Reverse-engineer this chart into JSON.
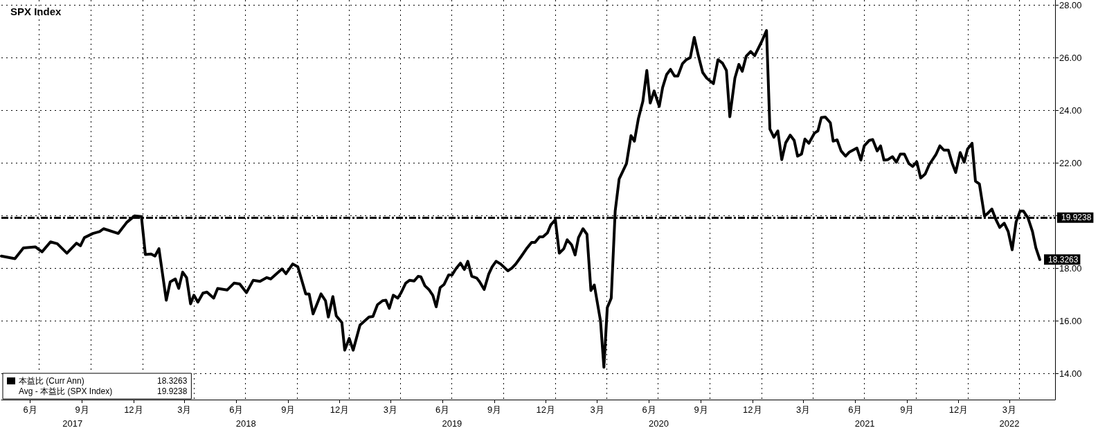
{
  "chart_data": {
    "type": "line",
    "title": "SPX Index",
    "xlim": [
      "2017-04-25",
      "2022-06-04"
    ],
    "xticks": [
      {
        "value": "2017-06-15",
        "label": "6月"
      },
      {
        "value": "2017-09-15",
        "label": "9月"
      },
      {
        "value": "2017-12-15",
        "label": "12月"
      },
      {
        "value": "2018-03-15",
        "label": "3月"
      },
      {
        "value": "2018-06-15",
        "label": "6月"
      },
      {
        "value": "2018-09-15",
        "label": "9月"
      },
      {
        "value": "2018-12-15",
        "label": "12月"
      },
      {
        "value": "2019-03-15",
        "label": "3月"
      },
      {
        "value": "2019-06-15",
        "label": "6月"
      },
      {
        "value": "2019-09-15",
        "label": "9月"
      },
      {
        "value": "2019-12-15",
        "label": "12月"
      },
      {
        "value": "2020-03-15",
        "label": "3月"
      },
      {
        "value": "2020-06-15",
        "label": "6月"
      },
      {
        "value": "2020-09-15",
        "label": "9月"
      },
      {
        "value": "2020-12-15",
        "label": "12月"
      },
      {
        "value": "2021-03-15",
        "label": "3月"
      },
      {
        "value": "2021-06-15",
        "label": "6月"
      },
      {
        "value": "2021-09-15",
        "label": "9月"
      },
      {
        "value": "2021-12-15",
        "label": "12月"
      },
      {
        "value": "2022-03-15",
        "label": "3月"
      },
      {
        "value": "2017-07-01",
        "label": null
      },
      {
        "value": "2017-10-01",
        "label": null
      },
      {
        "value": "2018-01-01",
        "label": null
      },
      {
        "value": "2018-04-01",
        "label": null
      },
      {
        "value": "2018-07-01",
        "label": null
      },
      {
        "value": "2018-10-01",
        "label": null
      },
      {
        "value": "2019-01-01",
        "label": null
      },
      {
        "value": "2019-04-01",
        "label": null
      },
      {
        "value": "2019-07-01",
        "label": null
      },
      {
        "value": "2019-10-01",
        "label": null
      },
      {
        "value": "2020-01-01",
        "label": null
      },
      {
        "value": "2020-04-01",
        "label": null
      },
      {
        "value": "2020-07-01",
        "label": null
      },
      {
        "value": "2020-10-01",
        "label": null
      },
      {
        "value": "2021-01-01",
        "label": null
      },
      {
        "value": "2021-04-01",
        "label": null
      },
      {
        "value": "2021-07-01",
        "label": null
      },
      {
        "value": "2021-10-01",
        "label": null
      },
      {
        "value": "2022-01-01",
        "label": null
      },
      {
        "value": "2022-04-01",
        "label": null
      }
    ],
    "x2lim": [
      "2017-04-25",
      "2022-06-04"
    ],
    "x2ticks": [
      {
        "value": "2017-08-29",
        "label": "2017"
      },
      {
        "value": "2018-07-02",
        "label": "2018"
      },
      {
        "value": "2019-07-02",
        "label": "2019"
      },
      {
        "value": "2020-07-02",
        "label": "2020"
      },
      {
        "value": "2021-07-02",
        "label": "2021"
      },
      {
        "value": "2022-03-15",
        "label": "2022"
      }
    ],
    "ylim": [
      13,
      28.2
    ],
    "yticks": [
      {
        "value": 14,
        "label": "14.00"
      },
      {
        "value": 16,
        "label": "16.00"
      },
      {
        "value": 18,
        "label": "18.00"
      },
      {
        "value": 20,
        "label": null
      },
      {
        "value": 22,
        "label": "22.00"
      },
      {
        "value": 24,
        "label": "24.00"
      },
      {
        "value": 26,
        "label": "26.00"
      },
      {
        "value": 28,
        "label": "28.00"
      }
    ],
    "grid": true,
    "legend": "bottom left",
    "marker": "none",
    "line_style": "solid",
    "ref_lines": [
      {
        "axis": "y",
        "value": 19.9238,
        "label": "19.9238",
        "color": "#000000",
        "line_style": "dashed"
      }
    ],
    "annotations": [
      "Avg - 本益比 (SPX Index)"
    ],
    "x": [
      "2017-04-25",
      "2017-05-19",
      "2017-06-03",
      "2017-06-24",
      "2017-07-06",
      "2017-07-21",
      "2017-08-02",
      "2017-08-19",
      "2017-09-05",
      "2017-09-12",
      "2017-09-19",
      "2017-10-04",
      "2017-10-16",
      "2017-10-23",
      "2017-11-18",
      "2017-12-03",
      "2017-12-17",
      "2017-12-29",
      "2018-01-05",
      "2018-01-15",
      "2018-01-22",
      "2018-01-29",
      "2018-02-11",
      "2018-02-18",
      "2018-02-27",
      "2018-03-05",
      "2018-03-12",
      "2018-03-19",
      "2018-03-26",
      "2018-04-01",
      "2018-04-08",
      "2018-04-17",
      "2018-04-24",
      "2018-05-06",
      "2018-05-13",
      "2018-05-30",
      "2018-06-11",
      "2018-06-21",
      "2018-07-03",
      "2018-07-15",
      "2018-07-27",
      "2018-08-08",
      "2018-08-15",
      "2018-09-04",
      "2018-09-11",
      "2018-09-23",
      "2018-10-02",
      "2018-10-16",
      "2018-10-22",
      "2018-10-29",
      "2018-11-12",
      "2018-11-20",
      "2018-11-25",
      "2018-12-03",
      "2018-12-09",
      "2018-12-19",
      "2018-12-24",
      "2019-01-01",
      "2019-01-08",
      "2019-01-20",
      "2019-02-05",
      "2019-02-12",
      "2019-02-20",
      "2019-03-01",
      "2019-03-07",
      "2019-03-13",
      "2019-03-20",
      "2019-03-28",
      "2019-04-03",
      "2019-04-11",
      "2019-04-18",
      "2019-04-26",
      "2019-05-03",
      "2019-05-08",
      "2019-05-15",
      "2019-05-22",
      "2019-05-29",
      "2019-06-04",
      "2019-06-11",
      "2019-06-18",
      "2019-06-26",
      "2019-07-02",
      "2019-07-09",
      "2019-07-17",
      "2019-07-24",
      "2019-07-30",
      "2019-08-06",
      "2019-08-15",
      "2019-08-20",
      "2019-08-28",
      "2019-09-05",
      "2019-09-11",
      "2019-09-18",
      "2019-09-26",
      "2019-10-09",
      "2019-10-16",
      "2019-10-23",
      "2019-11-02",
      "2019-11-12",
      "2019-11-20",
      "2019-11-26",
      "2019-12-04",
      "2019-12-10",
      "2019-12-18",
      "2019-12-24",
      "2020-01-01",
      "2020-01-08",
      "2020-01-16",
      "2020-01-22",
      "2020-01-30",
      "2020-02-05",
      "2020-02-11",
      "2020-02-19",
      "2020-02-26",
      "2020-03-04",
      "2020-03-10",
      "2020-03-21",
      "2020-03-27",
      "2020-04-02",
      "2020-04-09",
      "2020-04-16",
      "2020-04-23",
      "2020-05-06",
      "2020-05-14",
      "2020-05-20",
      "2020-05-27",
      "2020-06-04",
      "2020-06-11",
      "2020-06-17",
      "2020-06-24",
      "2020-07-03",
      "2020-07-09",
      "2020-07-16",
      "2020-07-23",
      "2020-07-30",
      "2020-08-05",
      "2020-08-13",
      "2020-08-20",
      "2020-08-27",
      "2020-09-03",
      "2020-09-10",
      "2020-09-18",
      "2020-09-25",
      "2020-10-07",
      "2020-10-15",
      "2020-10-23",
      "2020-10-30",
      "2020-11-05",
      "2020-11-14",
      "2020-11-21",
      "2020-11-27",
      "2020-12-04",
      "2020-12-12",
      "2020-12-19",
      "2020-12-31",
      "2021-01-09",
      "2021-01-15",
      "2021-01-22",
      "2021-01-29",
      "2021-02-05",
      "2021-02-12",
      "2021-02-20",
      "2021-02-27",
      "2021-03-05",
      "2021-03-12",
      "2021-03-18",
      "2021-03-25",
      "2021-04-04",
      "2021-04-10",
      "2021-04-16",
      "2021-04-23",
      "2021-05-02",
      "2021-05-07",
      "2021-05-14",
      "2021-05-21",
      "2021-05-29",
      "2021-06-05",
      "2021-06-18",
      "2021-06-25",
      "2021-07-01",
      "2021-07-10",
      "2021-07-16",
      "2021-07-24",
      "2021-07-30",
      "2021-08-05",
      "2021-08-12",
      "2021-08-20",
      "2021-08-27",
      "2021-09-03",
      "2021-09-10",
      "2021-09-18",
      "2021-09-25",
      "2021-10-02",
      "2021-10-09",
      "2021-10-17",
      "2021-10-24",
      "2021-11-05",
      "2021-11-12",
      "2021-11-19",
      "2021-11-27",
      "2021-12-04",
      "2021-12-10",
      "2021-12-18",
      "2021-12-25",
      "2021-12-31",
      "2022-01-08",
      "2022-01-14",
      "2022-01-21",
      "2022-01-30",
      "2022-02-05",
      "2022-02-12",
      "2022-02-19",
      "2022-02-26",
      "2022-03-06",
      "2022-03-13",
      "2022-03-20",
      "2022-03-27",
      "2022-04-03",
      "2022-04-09",
      "2022-04-17",
      "2022-04-25",
      "2022-05-01",
      "2022-05-08"
    ],
    "series": [
      {
        "name": "本益比 (Curr Ann)",
        "color": "#000000",
        "values": [
          18.46,
          18.36,
          18.77,
          18.81,
          18.62,
          19.0,
          18.93,
          18.57,
          18.95,
          18.85,
          19.16,
          19.32,
          19.39,
          19.5,
          19.32,
          19.74,
          19.99,
          19.96,
          18.52,
          18.54,
          18.46,
          18.74,
          16.78,
          17.48,
          17.59,
          17.23,
          17.85,
          17.64,
          16.64,
          16.97,
          16.71,
          17.05,
          17.09,
          16.86,
          17.23,
          17.17,
          17.43,
          17.4,
          17.07,
          17.54,
          17.5,
          17.64,
          17.59,
          17.97,
          17.79,
          18.16,
          18.05,
          17.02,
          17.02,
          16.26,
          17.02,
          16.76,
          16.14,
          16.92,
          16.19,
          15.93,
          14.88,
          15.33,
          14.88,
          15.83,
          16.14,
          16.16,
          16.61,
          16.76,
          16.78,
          16.47,
          16.97,
          16.86,
          17.07,
          17.43,
          17.54,
          17.51,
          17.69,
          17.67,
          17.33,
          17.19,
          16.97,
          16.53,
          17.26,
          17.38,
          17.74,
          17.74,
          17.98,
          18.19,
          17.95,
          18.26,
          17.69,
          17.62,
          17.48,
          17.19,
          17.77,
          18.05,
          18.26,
          18.16,
          17.9,
          18.0,
          18.16,
          18.46,
          18.77,
          18.98,
          18.98,
          19.19,
          19.19,
          19.34,
          19.65,
          19.84,
          18.57,
          18.74,
          19.08,
          18.88,
          18.5,
          19.16,
          19.5,
          19.29,
          17.15,
          17.36,
          15.99,
          14.23,
          16.5,
          16.86,
          20.17,
          21.39,
          21.98,
          23.04,
          22.83,
          23.68,
          24.35,
          25.52,
          24.28,
          24.74,
          24.15,
          24.87,
          25.36,
          25.56,
          25.31,
          25.31,
          25.77,
          25.93,
          26.01,
          26.78,
          26.11,
          25.44,
          25.23,
          25.02,
          25.93,
          25.8,
          25.52,
          23.76,
          25.23,
          25.75,
          25.49,
          26.06,
          26.24,
          26.08,
          26.6,
          27.04,
          23.29,
          22.98,
          23.22,
          22.13,
          22.77,
          23.06,
          22.86,
          22.26,
          22.34,
          22.91,
          22.75,
          23.14,
          23.22,
          23.73,
          23.75,
          23.53,
          22.83,
          22.88,
          22.46,
          22.26,
          22.42,
          22.57,
          22.11,
          22.65,
          22.86,
          22.89,
          22.46,
          22.65,
          22.11,
          22.13,
          22.24,
          22.03,
          22.34,
          22.34,
          21.98,
          21.87,
          22.05,
          21.43,
          21.58,
          21.93,
          22.32,
          22.65,
          22.49,
          22.49,
          21.98,
          21.64,
          22.4,
          22.03,
          22.53,
          22.75,
          21.31,
          21.2,
          19.98,
          20.09,
          20.25,
          19.86,
          19.55,
          19.71,
          19.39,
          18.7,
          19.76,
          20.17,
          20.17,
          19.91,
          19.39,
          18.77,
          18.3263
        ],
        "value_labels": [
          null,
          null,
          null,
          null,
          null,
          null,
          null,
          null,
          null,
          null,
          null,
          null,
          null,
          null,
          null,
          null,
          null,
          null,
          null,
          null,
          null,
          null,
          null,
          null,
          null,
          null,
          null,
          null,
          null,
          null,
          null,
          null,
          null,
          null,
          null,
          null,
          null,
          null,
          null,
          null,
          null,
          null,
          null,
          null,
          null,
          null,
          null,
          null,
          null,
          null,
          null,
          null,
          null,
          null,
          null,
          null,
          null,
          null,
          null,
          null,
          null,
          null,
          null,
          null,
          null,
          null,
          null,
          null,
          null,
          null,
          null,
          null,
          null,
          null,
          null,
          null,
          null,
          null,
          null,
          null,
          null,
          null,
          null,
          null,
          null,
          null,
          null,
          null,
          null,
          null,
          null,
          null,
          null,
          null,
          null,
          null,
          null,
          null,
          null,
          null,
          null,
          null,
          null,
          null,
          null,
          null,
          null,
          null,
          null,
          null,
          null,
          null,
          null,
          null,
          null,
          null,
          null,
          null,
          null,
          null,
          null,
          null,
          null,
          null,
          null,
          null,
          null,
          null,
          null,
          null,
          null,
          null,
          null,
          null,
          null,
          null,
          null,
          null,
          null,
          null,
          null,
          null,
          null,
          null,
          null,
          null,
          null,
          null,
          null,
          null,
          null,
          null,
          null,
          null,
          null,
          null,
          null,
          null,
          null,
          null,
          null,
          null,
          null,
          null,
          null,
          null,
          null,
          null,
          null,
          null,
          null,
          null,
          null,
          null,
          null,
          null,
          null,
          null,
          null,
          null,
          null,
          null,
          null,
          null,
          null,
          null,
          null,
          null,
          null,
          null,
          null,
          null,
          null,
          null,
          null,
          null,
          null,
          null,
          null,
          null,
          null,
          null,
          null,
          null,
          null,
          null,
          null,
          null,
          null,
          null,
          null,
          null,
          null,
          null,
          null,
          null,
          null,
          null,
          null,
          null,
          null,
          null,
          "18.3263"
        ]
      }
    ]
  }
}
